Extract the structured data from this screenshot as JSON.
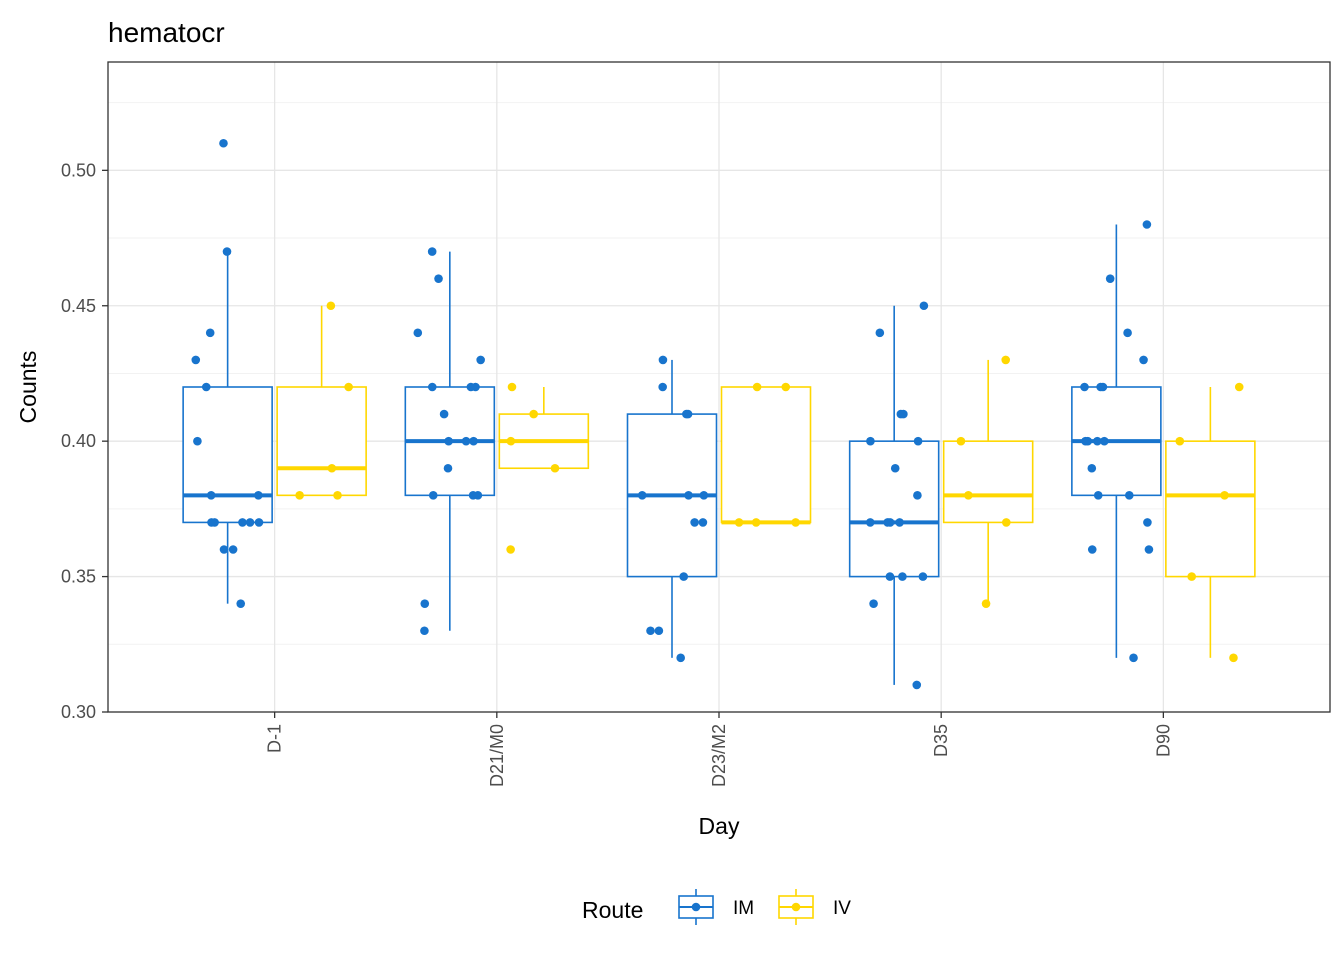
{
  "chart_data": {
    "type": "boxplot",
    "title": "hematocr",
    "xlabel": "Day",
    "ylabel": "Counts",
    "ylim": [
      0.3,
      0.54
    ],
    "yticks": [
      0.3,
      0.35,
      0.4,
      0.45,
      0.5
    ],
    "ytick_labels": [
      "0.30",
      "0.35",
      "0.40",
      "0.45",
      "0.50"
    ],
    "categories": [
      "D-1",
      "D21/M0",
      "D23/M2",
      "D35",
      "D90"
    ],
    "grid": true,
    "legend": {
      "title": "Route",
      "position": "bottom"
    },
    "series": [
      {
        "name": "IM",
        "color": "#1874CD",
        "boxes": [
          {
            "q1": 0.37,
            "median": 0.38,
            "q3": 0.42,
            "low": 0.34,
            "high": 0.47
          },
          {
            "q1": 0.38,
            "median": 0.4,
            "q3": 0.42,
            "low": 0.33,
            "high": 0.47
          },
          {
            "q1": 0.35,
            "median": 0.38,
            "q3": 0.41,
            "low": 0.32,
            "high": 0.43
          },
          {
            "q1": 0.35,
            "median": 0.37,
            "q3": 0.4,
            "low": 0.31,
            "high": 0.45
          },
          {
            "q1": 0.38,
            "median": 0.4,
            "q3": 0.42,
            "low": 0.32,
            "high": 0.48
          }
        ],
        "points": [
          [
            0.51,
            0.47,
            0.44,
            0.43,
            0.42,
            0.4,
            0.38,
            0.38,
            0.37,
            0.37,
            0.37,
            0.37,
            0.37,
            0.36,
            0.36,
            0.34
          ],
          [
            0.47,
            0.46,
            0.44,
            0.43,
            0.42,
            0.42,
            0.42,
            0.41,
            0.4,
            0.4,
            0.4,
            0.39,
            0.38,
            0.38,
            0.38,
            0.34,
            0.33
          ],
          [
            0.43,
            0.42,
            0.41,
            0.41,
            0.38,
            0.38,
            0.38,
            0.37,
            0.37,
            0.35,
            0.33,
            0.33,
            0.32
          ],
          [
            0.45,
            0.44,
            0.41,
            0.41,
            0.4,
            0.4,
            0.39,
            0.38,
            0.37,
            0.37,
            0.37,
            0.37,
            0.35,
            0.35,
            0.35,
            0.34,
            0.31
          ],
          [
            0.48,
            0.46,
            0.44,
            0.43,
            0.42,
            0.42,
            0.42,
            0.4,
            0.4,
            0.4,
            0.4,
            0.39,
            0.38,
            0.38,
            0.37,
            0.36,
            0.36,
            0.32
          ]
        ]
      },
      {
        "name": "IV",
        "color": "#FFD700",
        "boxes": [
          {
            "q1": 0.38,
            "median": 0.39,
            "q3": 0.42,
            "low": 0.38,
            "high": 0.45
          },
          {
            "q1": 0.39,
            "median": 0.4,
            "q3": 0.41,
            "low": 0.39,
            "high": 0.42
          },
          {
            "q1": 0.37,
            "median": 0.37,
            "q3": 0.42,
            "low": 0.37,
            "high": 0.42
          },
          {
            "q1": 0.37,
            "median": 0.38,
            "q3": 0.4,
            "low": 0.34,
            "high": 0.43
          },
          {
            "q1": 0.35,
            "median": 0.38,
            "q3": 0.4,
            "low": 0.32,
            "high": 0.42
          }
        ],
        "points": [
          [
            0.45,
            0.42,
            0.39,
            0.38,
            0.38
          ],
          [
            0.42,
            0.41,
            0.4,
            0.39,
            0.36
          ],
          [
            0.42,
            0.42,
            0.37,
            0.37,
            0.37
          ],
          [
            0.43,
            0.4,
            0.38,
            0.37,
            0.34
          ],
          [
            0.42,
            0.4,
            0.38,
            0.35,
            0.32
          ]
        ]
      }
    ]
  }
}
